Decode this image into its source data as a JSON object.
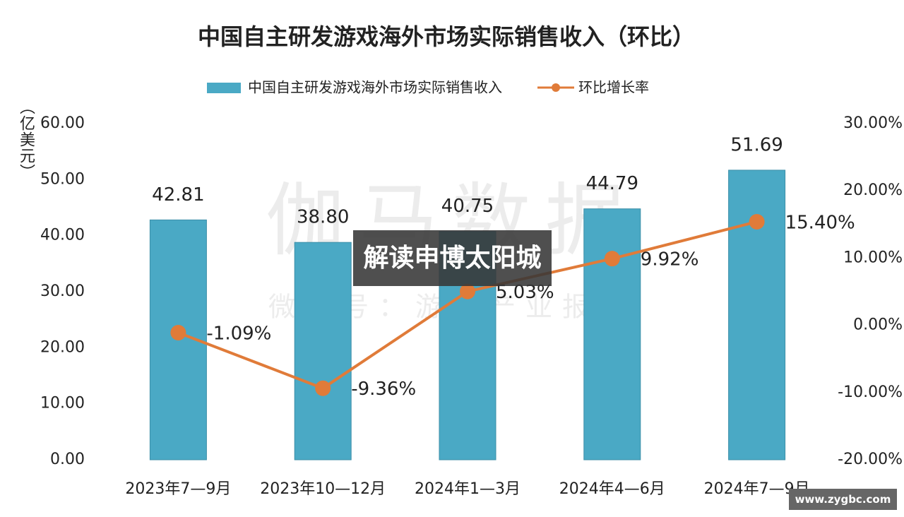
{
  "chart_data": {
    "type": "bar_line",
    "title": "中国自主研发游戏海外市场实际销售收入（环比）",
    "y_label": "（亿美元）",
    "categories": [
      "2023年7—9月",
      "2023年10—12月",
      "2024年1—3月",
      "2024年4—6月",
      "2024年7—9月"
    ],
    "series": [
      {
        "name": "中国自主研发游戏海外市场实际销售收入",
        "color": "#4aa9c5",
        "type": "bar",
        "values": [
          42.81,
          38.8,
          40.75,
          44.79,
          51.69
        ],
        "value_labels": [
          "42.81",
          "38.80",
          "40.75",
          "44.79",
          "51.69"
        ]
      },
      {
        "name": "环比增长率",
        "color": "#e07b39",
        "type": "line",
        "axis": "y2",
        "values": [
          -1.09,
          -9.36,
          5.03,
          9.92,
          15.4
        ],
        "value_labels": [
          "-1.09%",
          "-9.36%",
          "5.03%",
          "9.92%",
          "15.40%"
        ]
      }
    ],
    "ylim": [
      0,
      60
    ],
    "yticks": [
      {
        "value": 0,
        "label": "0.00"
      },
      {
        "value": 10,
        "label": "10.00"
      },
      {
        "value": 20,
        "label": "20.00"
      },
      {
        "value": 30,
        "label": "30.00"
      },
      {
        "value": 40,
        "label": "40.00"
      },
      {
        "value": 50,
        "label": "50.00"
      },
      {
        "value": 60,
        "label": "60.00"
      }
    ],
    "y2lim": [
      -20,
      30
    ],
    "y2ticks": [
      {
        "value": -20,
        "label": "-20.00%"
      },
      {
        "value": -10,
        "label": "-10.00%"
      },
      {
        "value": 0,
        "label": "0.00%"
      },
      {
        "value": 10,
        "label": "10.00%"
      },
      {
        "value": 20,
        "label": "20.00%"
      },
      {
        "value": 30,
        "label": "30.00%"
      }
    ],
    "legend": "top",
    "grid": false
  },
  "watermark": [
    "伽马数据",
    "微信号：游戏产业报告"
  ],
  "overlay": "解读申博太阳城",
  "badge": "www.zygbc.com"
}
